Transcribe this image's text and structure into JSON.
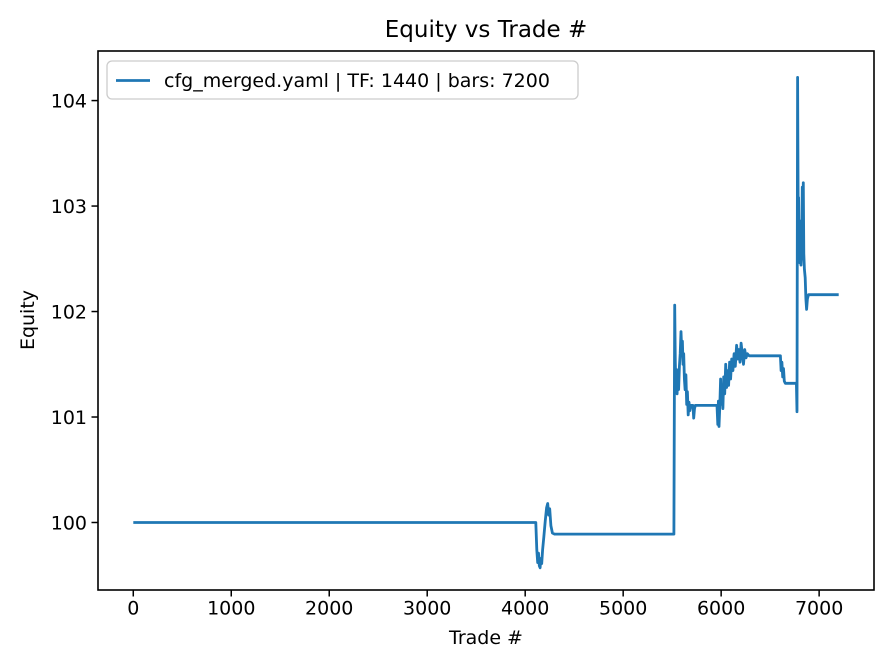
{
  "chart_data": {
    "type": "line",
    "title": "Equity vs Trade #",
    "xlabel": "Trade #",
    "ylabel": "Equity",
    "grid": false,
    "legend_position": "upper left",
    "line_color": "#1f77b4",
    "spine_color": "#000000",
    "legend_border_color": "#cccccc",
    "xlim": [
      -360,
      7560
    ],
    "ylim": [
      99.36,
      104.47
    ],
    "x_ticks": [
      0,
      1000,
      2000,
      3000,
      4000,
      5000,
      6000,
      7000
    ],
    "y_ticks": [
      100,
      101,
      102,
      103,
      104
    ],
    "series": [
      {
        "name": "cfg_merged.yaml | TF: 1440 | bars: 7200",
        "points": [
          [
            0,
            100.0
          ],
          [
            4108,
            100.0
          ],
          [
            4118,
            99.74
          ],
          [
            4128,
            99.62
          ],
          [
            4136,
            99.71
          ],
          [
            4144,
            99.59
          ],
          [
            4152,
            99.57
          ],
          [
            4160,
            99.66
          ],
          [
            4168,
            99.61
          ],
          [
            4178,
            99.74
          ],
          [
            4190,
            99.86
          ],
          [
            4205,
            100.02
          ],
          [
            4218,
            100.14
          ],
          [
            4230,
            100.18
          ],
          [
            4240,
            100.07
          ],
          [
            4250,
            100.13
          ],
          [
            4262,
            99.97
          ],
          [
            4278,
            99.9
          ],
          [
            4300,
            99.89
          ],
          [
            5518,
            99.89
          ],
          [
            5526,
            102.06
          ],
          [
            5532,
            101.52
          ],
          [
            5538,
            101.28
          ],
          [
            5544,
            101.45
          ],
          [
            5550,
            101.22
          ],
          [
            5558,
            101.4
          ],
          [
            5566,
            101.26
          ],
          [
            5574,
            101.48
          ],
          [
            5582,
            101.6
          ],
          [
            5590,
            101.81
          ],
          [
            5597,
            101.63
          ],
          [
            5604,
            101.72
          ],
          [
            5611,
            101.5
          ],
          [
            5618,
            101.6
          ],
          [
            5625,
            101.36
          ],
          [
            5632,
            101.26
          ],
          [
            5640,
            101.4
          ],
          [
            5648,
            101.12
          ],
          [
            5656,
            101.24
          ],
          [
            5664,
            101.02
          ],
          [
            5672,
            101.14
          ],
          [
            5680,
            101.06
          ],
          [
            5690,
            101.11
          ],
          [
            5712,
            101.11
          ],
          [
            5720,
            100.99
          ],
          [
            5728,
            101.08
          ],
          [
            5736,
            101.11
          ],
          [
            5958,
            101.11
          ],
          [
            5966,
            100.93
          ],
          [
            5972,
            101.15
          ],
          [
            5978,
            100.91
          ],
          [
            5986,
            101.1
          ],
          [
            5994,
            101.36
          ],
          [
            6002,
            101.12
          ],
          [
            6010,
            101.3
          ],
          [
            6018,
            101.08
          ],
          [
            6026,
            101.38
          ],
          [
            6036,
            101.22
          ],
          [
            6046,
            101.5
          ],
          [
            6056,
            101.28
          ],
          [
            6066,
            101.44
          ],
          [
            6076,
            101.3
          ],
          [
            6086,
            101.52
          ],
          [
            6096,
            101.36
          ],
          [
            6108,
            101.55
          ],
          [
            6120,
            101.44
          ],
          [
            6132,
            101.6
          ],
          [
            6144,
            101.48
          ],
          [
            6158,
            101.68
          ],
          [
            6170,
            101.55
          ],
          [
            6180,
            101.64
          ],
          [
            6192,
            101.52
          ],
          [
            6204,
            101.7
          ],
          [
            6216,
            101.6
          ],
          [
            6228,
            101.5
          ],
          [
            6240,
            101.64
          ],
          [
            6254,
            101.56
          ],
          [
            6268,
            101.6
          ],
          [
            6285,
            101.58
          ],
          [
            6605,
            101.58
          ],
          [
            6612,
            101.44
          ],
          [
            6620,
            101.52
          ],
          [
            6628,
            101.38
          ],
          [
            6636,
            101.46
          ],
          [
            6645,
            101.34
          ],
          [
            6655,
            101.32
          ],
          [
            6768,
            101.32
          ],
          [
            6774,
            101.05
          ],
          [
            6780,
            104.22
          ],
          [
            6786,
            102.85
          ],
          [
            6790,
            103.08
          ],
          [
            6795,
            102.62
          ],
          [
            6800,
            102.86
          ],
          [
            6805,
            102.46
          ],
          [
            6810,
            102.68
          ],
          [
            6815,
            102.44
          ],
          [
            6822,
            102.6
          ],
          [
            6828,
            103.18
          ],
          [
            6833,
            102.9
          ],
          [
            6838,
            103.22
          ],
          [
            6844,
            102.55
          ],
          [
            6850,
            102.4
          ],
          [
            6858,
            102.32
          ],
          [
            6865,
            102.12
          ],
          [
            6872,
            102.02
          ],
          [
            6880,
            102.12
          ],
          [
            6892,
            102.16
          ],
          [
            7200,
            102.16
          ]
        ]
      }
    ]
  }
}
